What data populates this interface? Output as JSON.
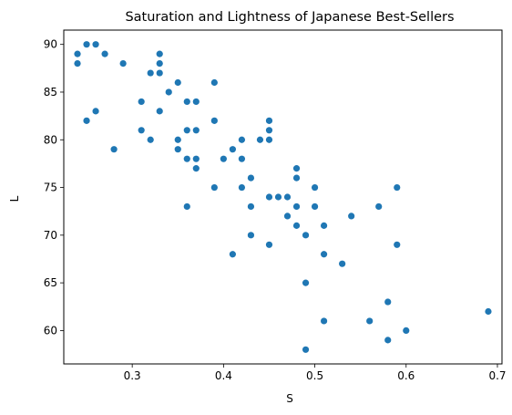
{
  "chart_data": {
    "type": "scatter",
    "title": "Saturation and Lightness of Japanese Best-Sellers",
    "xlabel": "S",
    "ylabel": "L",
    "xlim": [
      0.225,
      0.705
    ],
    "ylim": [
      56.5,
      91.5
    ],
    "xticks": [
      0.3,
      0.4,
      0.5,
      0.6,
      0.7
    ],
    "xtick_labels": [
      "0.3",
      "0.4",
      "0.5",
      "0.6",
      "0.7"
    ],
    "yticks": [
      60,
      65,
      70,
      75,
      80,
      85,
      90
    ],
    "ytick_labels": [
      "60",
      "65",
      "70",
      "75",
      "80",
      "85",
      "90"
    ],
    "grid": false,
    "marker_color": "#1f77b4",
    "points": [
      {
        "x": 0.24,
        "y": 89
      },
      {
        "x": 0.24,
        "y": 88
      },
      {
        "x": 0.25,
        "y": 90
      },
      {
        "x": 0.26,
        "y": 90
      },
      {
        "x": 0.27,
        "y": 89
      },
      {
        "x": 0.25,
        "y": 82
      },
      {
        "x": 0.26,
        "y": 83
      },
      {
        "x": 0.28,
        "y": 79
      },
      {
        "x": 0.29,
        "y": 88
      },
      {
        "x": 0.31,
        "y": 84
      },
      {
        "x": 0.31,
        "y": 81
      },
      {
        "x": 0.32,
        "y": 87
      },
      {
        "x": 0.32,
        "y": 80
      },
      {
        "x": 0.33,
        "y": 89
      },
      {
        "x": 0.33,
        "y": 88
      },
      {
        "x": 0.33,
        "y": 87
      },
      {
        "x": 0.33,
        "y": 83
      },
      {
        "x": 0.34,
        "y": 85
      },
      {
        "x": 0.35,
        "y": 86
      },
      {
        "x": 0.35,
        "y": 80
      },
      {
        "x": 0.35,
        "y": 79
      },
      {
        "x": 0.36,
        "y": 84
      },
      {
        "x": 0.36,
        "y": 81
      },
      {
        "x": 0.36,
        "y": 78
      },
      {
        "x": 0.36,
        "y": 73
      },
      {
        "x": 0.37,
        "y": 84
      },
      {
        "x": 0.37,
        "y": 81
      },
      {
        "x": 0.37,
        "y": 78
      },
      {
        "x": 0.37,
        "y": 77
      },
      {
        "x": 0.39,
        "y": 86
      },
      {
        "x": 0.39,
        "y": 82
      },
      {
        "x": 0.39,
        "y": 75
      },
      {
        "x": 0.4,
        "y": 78
      },
      {
        "x": 0.41,
        "y": 79
      },
      {
        "x": 0.41,
        "y": 68
      },
      {
        "x": 0.42,
        "y": 80
      },
      {
        "x": 0.42,
        "y": 78
      },
      {
        "x": 0.42,
        "y": 75
      },
      {
        "x": 0.43,
        "y": 76
      },
      {
        "x": 0.43,
        "y": 73
      },
      {
        "x": 0.43,
        "y": 70
      },
      {
        "x": 0.44,
        "y": 80
      },
      {
        "x": 0.45,
        "y": 82
      },
      {
        "x": 0.45,
        "y": 81
      },
      {
        "x": 0.45,
        "y": 80
      },
      {
        "x": 0.45,
        "y": 74
      },
      {
        "x": 0.45,
        "y": 69
      },
      {
        "x": 0.46,
        "y": 74
      },
      {
        "x": 0.47,
        "y": 74
      },
      {
        "x": 0.47,
        "y": 72
      },
      {
        "x": 0.48,
        "y": 77
      },
      {
        "x": 0.48,
        "y": 76
      },
      {
        "x": 0.48,
        "y": 73
      },
      {
        "x": 0.48,
        "y": 71
      },
      {
        "x": 0.49,
        "y": 70
      },
      {
        "x": 0.49,
        "y": 65
      },
      {
        "x": 0.49,
        "y": 58
      },
      {
        "x": 0.5,
        "y": 75
      },
      {
        "x": 0.5,
        "y": 73
      },
      {
        "x": 0.51,
        "y": 71
      },
      {
        "x": 0.51,
        "y": 68
      },
      {
        "x": 0.51,
        "y": 61
      },
      {
        "x": 0.53,
        "y": 67
      },
      {
        "x": 0.54,
        "y": 72
      },
      {
        "x": 0.56,
        "y": 61
      },
      {
        "x": 0.57,
        "y": 73
      },
      {
        "x": 0.58,
        "y": 63
      },
      {
        "x": 0.58,
        "y": 59
      },
      {
        "x": 0.59,
        "y": 75
      },
      {
        "x": 0.59,
        "y": 69
      },
      {
        "x": 0.6,
        "y": 60
      },
      {
        "x": 0.69,
        "y": 62
      }
    ]
  }
}
